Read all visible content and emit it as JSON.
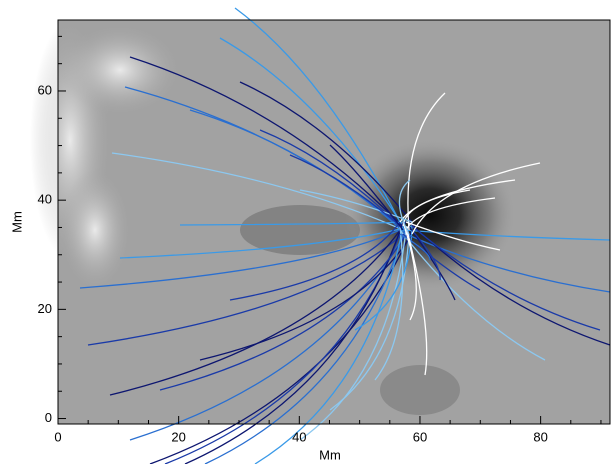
{
  "chart_data": {
    "type": "image",
    "xlabel": "Mm",
    "ylabel": "Mm",
    "xlim": [
      0,
      91.5
    ],
    "ylim": [
      -1,
      73
    ],
    "xticks": [
      0,
      20,
      40,
      60,
      80
    ],
    "yticks": [
      0,
      20,
      40,
      60
    ]
  }
}
